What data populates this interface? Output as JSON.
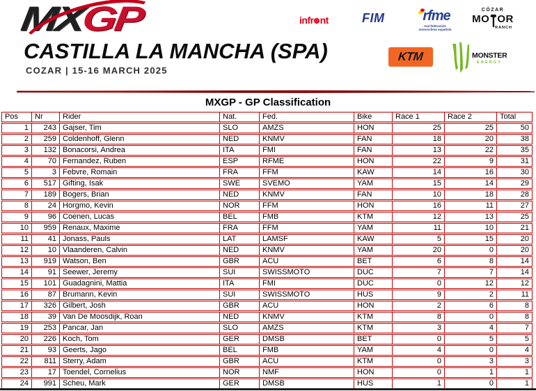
{
  "event": {
    "logo_mx": "MX",
    "logo_gp": "GP",
    "title": "CASTILLA LA MANCHA (SPA)",
    "subtitle": "COZAR | 15-16 MARCH 2025"
  },
  "sponsors": {
    "infront_prefix": "infr",
    "infront_suffix": "nt",
    "fim": "FIM",
    "rfme": "rfme",
    "rfme_tagline_line1": "real federación",
    "rfme_tagline_line2": "motociclista española",
    "cozar_top": "CÓZAR",
    "cozar_mo": "MO",
    "cozar_or": "OR",
    "cozar_ranch": "RANCH",
    "ktm": "KTM",
    "monster": "MONSTER",
    "monster_energy": "ENERGY"
  },
  "classification": {
    "title": "MXGP - GP Classification",
    "columns": [
      "Pos",
      "Nr",
      "Rider",
      "Nat.",
      "Fed.",
      "Bike",
      "Race 1",
      "Race 2",
      "Total"
    ],
    "column_keys": [
      "pos",
      "nr",
      "rider",
      "nat",
      "fed",
      "bike",
      "race1",
      "race2",
      "total"
    ],
    "rows": [
      [
        1,
        243,
        "Gajser, Tim",
        "SLO",
        "AMZS",
        "HON",
        25,
        25,
        50
      ],
      [
        2,
        259,
        "Coldenhoff, Glenn",
        "NED",
        "KNMV",
        "FAN",
        18,
        20,
        38
      ],
      [
        3,
        132,
        "Bonacorsi, Andrea",
        "ITA",
        "FMI",
        "FAN",
        13,
        22,
        35
      ],
      [
        4,
        70,
        "Fernandez, Ruben",
        "ESP",
        "RFME",
        "HON",
        22,
        9,
        31
      ],
      [
        5,
        3,
        "Febvre, Romain",
        "FRA",
        "FFM",
        "KAW",
        14,
        16,
        30
      ],
      [
        6,
        517,
        "Gifting, Isak",
        "SWE",
        "SVEMO",
        "YAM",
        15,
        14,
        29
      ],
      [
        7,
        189,
        "Bogers, Brian",
        "NED",
        "KNMV",
        "FAN",
        10,
        18,
        28
      ],
      [
        8,
        24,
        "Horgmo, Kevin",
        "NOR",
        "FFM",
        "HON",
        16,
        11,
        27
      ],
      [
        9,
        96,
        "Coenen, Lucas",
        "BEL",
        "FMB",
        "KTM",
        12,
        13,
        25
      ],
      [
        10,
        959,
        "Renaux, Maxime",
        "FRA",
        "FFM",
        "YAM",
        11,
        10,
        21
      ],
      [
        11,
        41,
        "Jonass, Pauls",
        "LAT",
        "LAMSF",
        "KAW",
        5,
        15,
        20
      ],
      [
        12,
        10,
        "Vlaanderen, Calvin",
        "NED",
        "KNMV",
        "YAM",
        20,
        0,
        20
      ],
      [
        13,
        919,
        "Watson, Ben",
        "GBR",
        "ACU",
        "BET",
        6,
        8,
        14
      ],
      [
        14,
        91,
        "Seewer, Jeremy",
        "SUI",
        "SWISSMOTO",
        "DUC",
        7,
        7,
        14
      ],
      [
        15,
        101,
        "Guadagnini, Mattia",
        "ITA",
        "FMI",
        "DUC",
        0,
        12,
        12
      ],
      [
        16,
        87,
        "Brumann, Kevin",
        "SUI",
        "SWISSMOTO",
        "HUS",
        9,
        2,
        11
      ],
      [
        17,
        326,
        "Gilbert, Josh",
        "GBR",
        "ACU",
        "HON",
        2,
        6,
        8
      ],
      [
        18,
        39,
        "Van De Moosdijk, Roan",
        "NED",
        "KNMV",
        "KTM",
        8,
        0,
        8
      ],
      [
        19,
        253,
        "Pancar, Jan",
        "SLO",
        "AMZS",
        "KTM",
        3,
        4,
        7
      ],
      [
        20,
        226,
        "Koch, Tom",
        "GER",
        "DMSB",
        "BET",
        0,
        5,
        5
      ],
      [
        21,
        93,
        "Geerts, Jago",
        "BEL",
        "FMB",
        "YAM",
        4,
        0,
        4
      ],
      [
        22,
        811,
        "Sterry, Adam",
        "GBR",
        "ACU",
        "KTM",
        0,
        3,
        3
      ],
      [
        23,
        17,
        "Toendel, Cornelius",
        "NOR",
        "NMF",
        "HON",
        0,
        1,
        1
      ],
      [
        24,
        991,
        "Scheu, Mark",
        "GER",
        "DMSB",
        "HUS",
        1,
        0,
        1
      ]
    ]
  },
  "colors": {
    "table_border_red": "#c00000",
    "swoosh_red": "#c3001b",
    "logo_gp_red": "#c8102e",
    "brush_line_dark_red": "#8a0a0a",
    "ktm_orange": "#f26522",
    "monster_green": "#78b928",
    "fim_blue": "#28388f",
    "rfme_blue": "#243f8f",
    "infront_red": "#e2001a",
    "text_black": "#000000",
    "bottom_line_dark": "#1e1e1e"
  }
}
